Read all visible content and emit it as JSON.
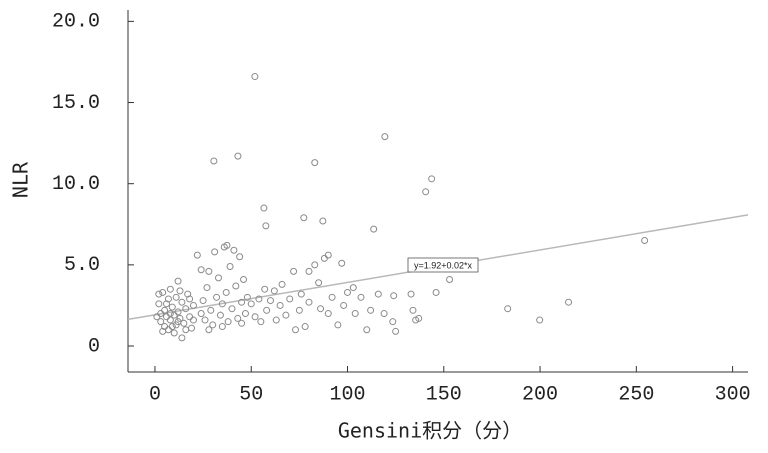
{
  "chart_data": {
    "type": "scatter",
    "x_label": "Gensini积分（分）",
    "y_label": "NLR",
    "xlim": [
      -14,
      308
    ],
    "ylim": [
      -1.6,
      20.7
    ],
    "xticks": [
      0,
      50,
      100,
      150,
      200,
      250,
      300
    ],
    "yticks": [
      0,
      {
        "value": 5,
        "label": "5.0"
      },
      {
        "value": 10,
        "label": "10.0"
      },
      {
        "value": 15,
        "label": "15.0"
      },
      {
        "value": 20,
        "label": "20.0"
      }
    ],
    "fit": {
      "intercept": 1.92,
      "slope": 0.02,
      "label": "y=1.92+0.02*x",
      "color": "#b8b8b8"
    },
    "x": [
      2,
      3,
      4,
      5,
      5,
      6,
      7,
      7,
      8,
      8,
      9,
      10,
      10,
      11,
      11,
      12,
      12,
      13,
      14,
      14,
      15,
      16,
      17,
      18,
      19,
      20,
      3,
      6,
      9,
      13,
      4,
      16,
      1,
      2,
      8,
      12,
      18,
      20,
      22,
      24,
      25,
      26,
      27,
      28,
      29,
      30,
      31,
      32,
      33,
      34,
      35,
      36,
      37,
      38,
      39,
      40,
      41,
      42,
      43,
      44,
      45,
      46,
      47,
      48,
      50,
      52,
      54,
      55,
      57,
      58,
      60,
      24,
      28,
      35,
      45,
      62,
      63,
      65,
      66,
      68,
      70,
      72,
      73,
      75,
      76,
      78,
      80,
      80,
      83,
      85,
      86,
      88,
      90,
      90,
      92,
      95,
      97,
      98,
      100,
      103,
      104,
      107,
      110,
      112,
      116,
      119,
      124,
      125,
      133,
      134,
      137,
      146,
      51.9,
      119.4,
      30.6,
      43.1,
      83,
      143.7,
      140.6,
      56.6,
      77.3,
      113.6,
      57.6,
      87.2,
      254.3,
      37.4,
      199.8,
      183.2,
      214.8,
      153,
      123.5,
      135.4
    ],
    "series": [
      {
        "color": "#8a8a8a",
        "values": [
          2.6,
          1.5,
          3.3,
          1.2,
          2.2,
          1.8,
          2.9,
          1.0,
          3.5,
          1.6,
          2.4,
          0.8,
          1.9,
          3.0,
          1.3,
          2.1,
          4.0,
          1.7,
          2.7,
          0.5,
          1.4,
          2.3,
          3.2,
          1.8,
          1.1,
          2.5,
          2.0,
          2.6,
          1.2,
          3.4,
          0.9,
          1.0,
          1.8,
          3.2,
          2.0,
          1.5,
          2.9,
          1.6,
          5.6,
          4.7,
          2.8,
          1.6,
          3.6,
          4.6,
          2.2,
          1.3,
          5.8,
          3.0,
          4.2,
          1.9,
          2.6,
          6.1,
          3.3,
          1.5,
          4.9,
          2.3,
          5.9,
          3.7,
          1.7,
          5.5,
          2.7,
          4.1,
          2.0,
          3.0,
          2.6,
          1.8,
          2.9,
          1.5,
          3.5,
          2.2,
          2.8,
          2.0,
          1.0,
          1.2,
          1.4,
          3.4,
          1.6,
          2.5,
          3.8,
          1.9,
          2.9,
          4.6,
          1.0,
          2.2,
          3.2,
          1.2,
          2.7,
          4.6,
          5.0,
          3.9,
          2.3,
          5.4,
          5.6,
          2.0,
          3.0,
          1.3,
          5.1,
          2.5,
          3.3,
          3.6,
          2.0,
          3.0,
          1.0,
          2.2,
          3.2,
          2.0,
          3.1,
          0.9,
          3.2,
          2.2,
          1.7,
          3.3,
          16.6,
          12.9,
          11.4,
          11.7,
          11.3,
          10.3,
          9.5,
          8.5,
          7.9,
          7.2,
          7.4,
          7.7,
          6.5,
          6.2,
          1.6,
          2.3,
          2.7,
          4.1,
          1.5,
          1.6
        ]
      }
    ]
  }
}
